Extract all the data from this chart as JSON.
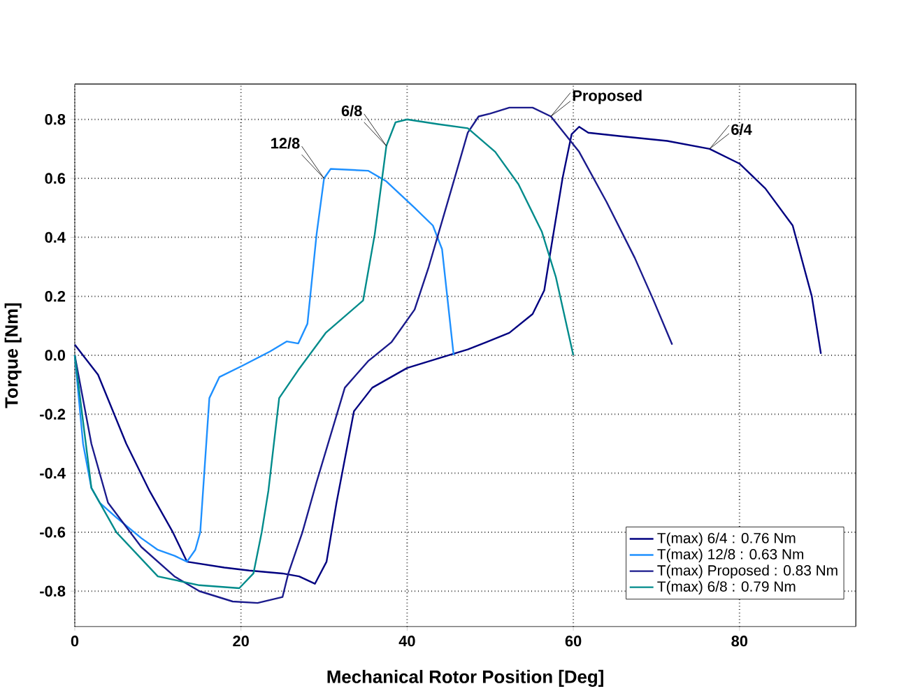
{
  "chart_data": {
    "type": "line",
    "xlabel": "Mechanical Rotor Position [Deg]",
    "ylabel": "Torque [Nm]",
    "xlim": [
      0,
      94
    ],
    "ylim": [
      -0.92,
      0.92
    ],
    "xticks": [
      0,
      20,
      40,
      60,
      80
    ],
    "yticks": [
      -0.8,
      -0.6,
      -0.4,
      -0.2,
      {
        "value": 0,
        "label": "0.0"
      },
      0.2,
      0.4,
      0.6,
      0.8
    ],
    "grid": true,
    "legend": "bottom right",
    "line_style": "solid",
    "series": [
      {
        "name": "T(max) 6/4 : 0.76 Nm",
        "color": "#000080",
        "x": [
          0,
          2.8,
          6.2,
          9,
          11.8,
          13.5,
          18,
          21,
          25,
          27,
          28.9,
          30.3,
          31.5,
          33.6,
          35.8,
          40,
          43.7,
          47.3,
          49.5,
          52.3,
          55.1,
          56.5,
          57.3,
          58.7,
          59.8,
          60.7,
          61.8,
          65.7,
          71.3,
          76.4,
          80,
          83.1,
          86.4,
          88.7,
          89.8
        ],
        "values": [
          0.036,
          -0.066,
          -0.3,
          -0.46,
          -0.6,
          -0.7,
          -0.72,
          -0.73,
          -0.74,
          -0.75,
          -0.775,
          -0.7,
          -0.5,
          -0.19,
          -0.11,
          -0.043,
          -0.011,
          0.02,
          0.044,
          0.076,
          0.14,
          0.22,
          0.36,
          0.6,
          0.75,
          0.775,
          0.755,
          0.743,
          0.727,
          0.7,
          0.65,
          0.566,
          0.44,
          0.2,
          0.005
        ]
      },
      {
        "name": "T(max) 12/8 : 0.63 Nm",
        "color": "#1E90FF",
        "x": [
          0,
          1,
          2,
          3,
          5,
          8,
          10,
          12,
          13.5,
          14.5,
          15.1,
          16.2,
          17.4,
          20.2,
          23.5,
          25.5,
          26.9,
          28,
          29.1,
          30,
          30.8,
          35.3,
          37.5,
          40.9,
          43.1,
          44.2,
          45.6
        ],
        "values": [
          0,
          -0.3,
          -0.45,
          -0.5,
          -0.55,
          -0.62,
          -0.66,
          -0.68,
          -0.7,
          -0.66,
          -0.6,
          -0.145,
          -0.074,
          -0.035,
          0.013,
          0.047,
          0.04,
          0.107,
          0.41,
          0.6,
          0.632,
          0.626,
          0.59,
          0.5,
          0.44,
          0.36,
          0
        ]
      },
      {
        "name": "T(max) Proposed : 0.83 Nm",
        "color": "#1A1A8C",
        "x": [
          0,
          2,
          4,
          8,
          12,
          15,
          19,
          22,
          25,
          25.7,
          27.4,
          29.1,
          32.5,
          35.3,
          38.1,
          40.9,
          42.6,
          45.4,
          47.3,
          48.6,
          50,
          52.3,
          55.1,
          57.3,
          60.7,
          64,
          67.4,
          69.6,
          71.9
        ],
        "values": [
          0,
          -0.3,
          -0.5,
          -0.65,
          -0.75,
          -0.8,
          -0.835,
          -0.84,
          -0.82,
          -0.74,
          -0.6,
          -0.43,
          -0.11,
          -0.02,
          0.044,
          0.155,
          0.3,
          0.57,
          0.755,
          0.81,
          0.82,
          0.84,
          0.84,
          0.81,
          0.69,
          0.52,
          0.33,
          0.19,
          0.036
        ]
      },
      {
        "name": "T(max) 6/8 : 0.79 Nm",
        "color": "#008B8B",
        "x": [
          0,
          2,
          5,
          10,
          15,
          19.8,
          21.5,
          22.5,
          23.3,
          24.6,
          26.9,
          30.2,
          34.7,
          36.1,
          37.5,
          38.6,
          40,
          43.7,
          47.3,
          50.6,
          53.4,
          56.2,
          57.9,
          60
        ],
        "values": [
          0,
          -0.45,
          -0.6,
          -0.75,
          -0.78,
          -0.79,
          -0.74,
          -0.6,
          -0.46,
          -0.145,
          -0.05,
          0.076,
          0.186,
          0.41,
          0.71,
          0.79,
          0.8,
          0.784,
          0.77,
          0.69,
          0.58,
          0.42,
          0.265,
          0
        ]
      }
    ],
    "annotations": [
      {
        "text": "12/8",
        "x": 30,
        "y": 0.6
      },
      {
        "text": "6/8",
        "x": 37.5,
        "y": 0.71
      },
      {
        "text": "Proposed",
        "x": 57.3,
        "y": 0.81
      },
      {
        "text": "6/4",
        "x": 76.4,
        "y": 0.7
      }
    ]
  }
}
